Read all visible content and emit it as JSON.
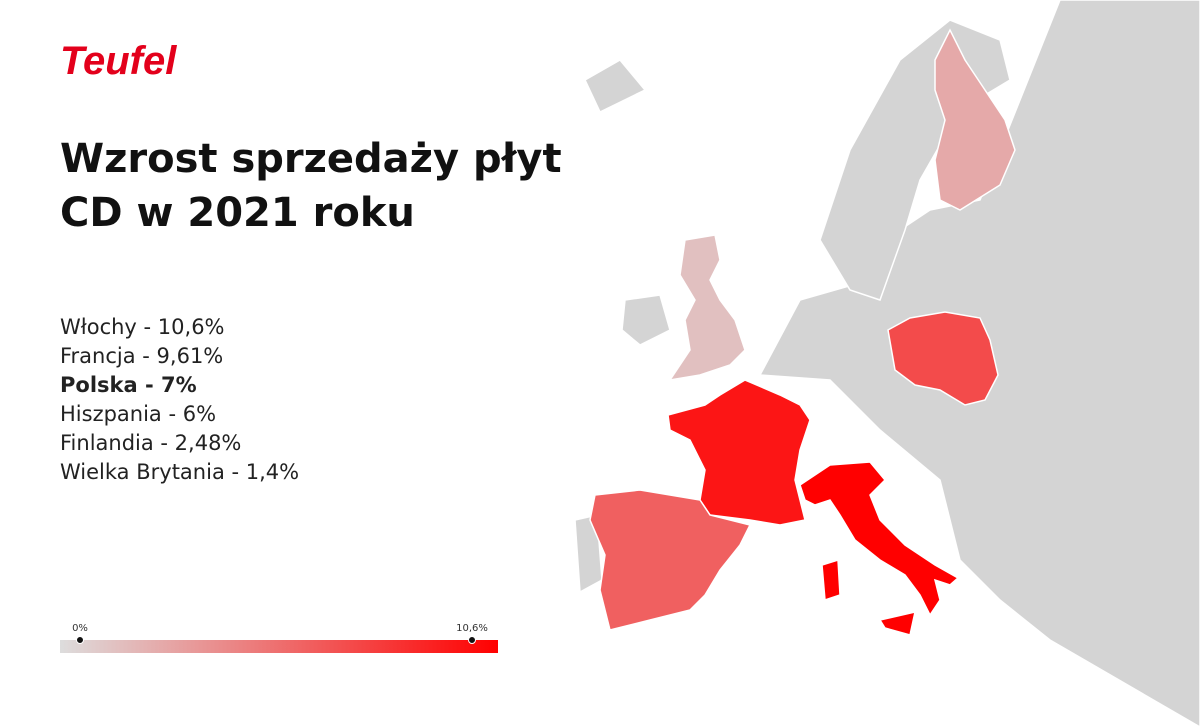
{
  "logo": "Teufel",
  "title": [
    "Wzrost sprzedaży płyt",
    "CD w 2021 roku"
  ],
  "items": [
    {
      "text": "Włochy - 10,6%",
      "value": 10.6,
      "country": "italy",
      "bold": false
    },
    {
      "text": "Francja - 9,61%",
      "value": 9.61,
      "country": "france",
      "bold": false
    },
    {
      "text": "Polska - 7%",
      "value": 7,
      "country": "poland",
      "bold": true
    },
    {
      "text": "Hiszpania - 6%",
      "value": 6,
      "country": "spain",
      "bold": false
    },
    {
      "text": "Finlandia - 2,48%",
      "value": 2.48,
      "country": "finland",
      "bold": false
    },
    {
      "text": "Wielka Brytania - 1,4%",
      "value": 1.4,
      "country": "uk",
      "bold": false
    }
  ],
  "scale": {
    "min": {
      "value": 0,
      "label": "0%"
    },
    "max": {
      "value": 10.6,
      "label": "10,6%"
    }
  }
}
